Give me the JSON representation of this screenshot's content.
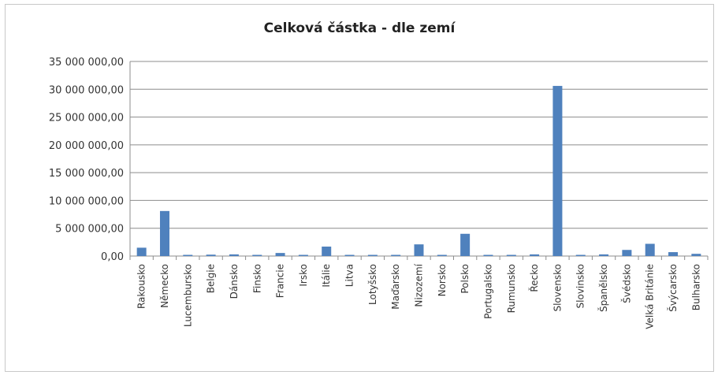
{
  "chart_data": {
    "type": "bar",
    "title": "Celková částka - dle zemí",
    "xlabel": "",
    "ylabel": "",
    "ylim": [
      0,
      35000000
    ],
    "yticks": [
      0,
      5000000,
      10000000,
      15000000,
      20000000,
      25000000,
      30000000,
      35000000
    ],
    "ytick_labels": [
      "0,00",
      "5 000 000,00",
      "10 000 000,00",
      "15 000 000,00",
      "20 000 000,00",
      "25 000 000,00",
      "30 000 000,00",
      "35 000 000,00"
    ],
    "grid": true,
    "legend": "none",
    "bar_color": "#4f81bd",
    "categories": [
      "Rakousko",
      "Německo",
      "Lucembursko",
      "Belgie",
      "Dánsko",
      "Finsko",
      "Francie",
      "Irsko",
      "Itálie",
      "Litva",
      "Lotyšsko",
      "Maďarsko",
      "Nizozemí",
      "Norsko",
      "Polsko",
      "Portugalsko",
      "Rumunsko",
      "Řecko",
      "Slovensko",
      "Slovinsko",
      "Španělsko",
      "Švédsko",
      "Velká Británie",
      "Švýcarsko",
      "Bulharsko"
    ],
    "values": [
      1500000,
      8100000,
      100000,
      250000,
      300000,
      100000,
      550000,
      100000,
      1700000,
      80000,
      80000,
      100000,
      2100000,
      150000,
      4000000,
      80000,
      100000,
      300000,
      30600000,
      150000,
      300000,
      1100000,
      2200000,
      700000,
      400000
    ]
  }
}
